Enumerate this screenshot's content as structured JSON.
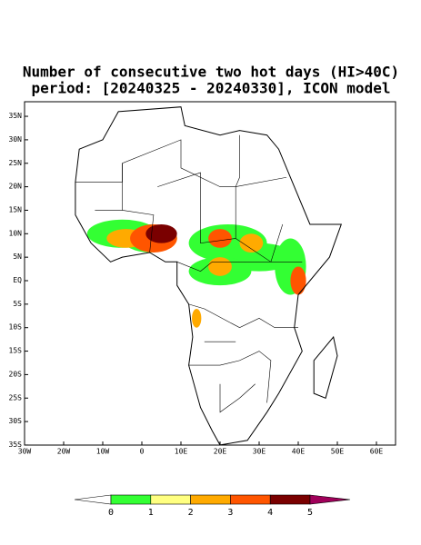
{
  "title": "Number of consecutive two hot days (HI>40C)",
  "subtitle": "period: [20240325 - 20240330], ICON model",
  "lat_labels": [
    "35N",
    "30N",
    "25N",
    "20N",
    "15N",
    "10N",
    "5N",
    "EQ",
    "5S",
    "10S",
    "15S",
    "20S",
    "25S",
    "30S",
    "35S"
  ],
  "lon_labels": [
    "30W",
    "20W",
    "10W",
    "0",
    "10E",
    "20E",
    "30E",
    "40E",
    "50E",
    "60E"
  ],
  "colorbar": {
    "levels": [
      0,
      1,
      2,
      3,
      4,
      5
    ],
    "colors": [
      "#ffffff",
      "#33ff33",
      "#ffff80",
      "#ffaa00",
      "#ff5500",
      "#7a0000",
      "#a0005a"
    ]
  }
}
